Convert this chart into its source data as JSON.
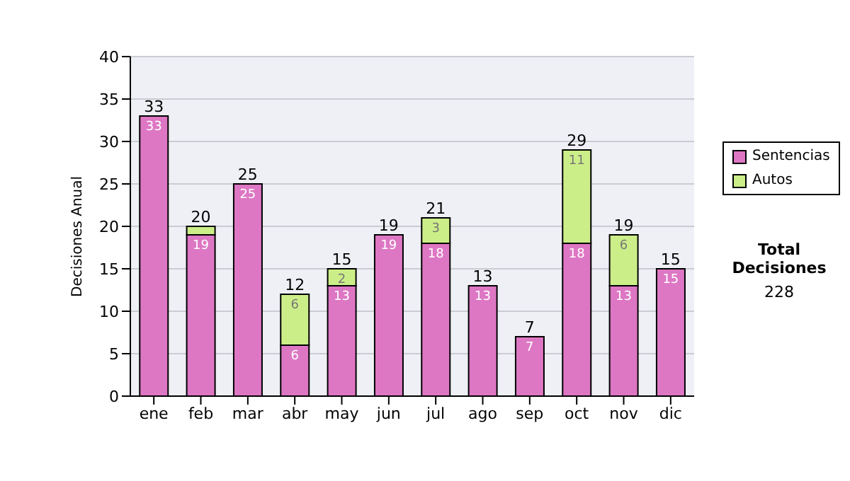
{
  "chart_data": {
    "type": "bar",
    "ylabel": "Decisiones Anual",
    "categories": [
      "ene",
      "feb",
      "mar",
      "abr",
      "may",
      "jun",
      "jul",
      "ago",
      "sep",
      "oct",
      "nov",
      "dic"
    ],
    "series": [
      {
        "name": "Sentencias",
        "color": "#dd77c4",
        "values": [
          33,
          19,
          25,
          6,
          13,
          19,
          18,
          13,
          7,
          18,
          13,
          15
        ],
        "value_labels": [
          "33",
          "19",
          "25",
          "6",
          "13",
          "19",
          "18",
          "13",
          "7",
          "18",
          "13",
          "15"
        ]
      },
      {
        "name": "Autos",
        "color": "#ccee88",
        "values": [
          0,
          1,
          0,
          6,
          2,
          0,
          3,
          0,
          0,
          11,
          6,
          0
        ],
        "value_labels": [
          null,
          null,
          null,
          "6",
          "2",
          null,
          "3",
          null,
          null,
          "11",
          "6",
          null
        ]
      }
    ],
    "stacked": true,
    "totals": [
      "33",
      "20",
      "25",
      "12",
      "15",
      "19",
      "21",
      "13",
      "7",
      "29",
      "19",
      "15"
    ],
    "ylim": [
      0,
      40
    ],
    "yticks": [
      0,
      5,
      10,
      15,
      20,
      25,
      30,
      35,
      40
    ],
    "grid": "y",
    "legend": "right",
    "annotations": [
      "Total Decisiones",
      "228"
    ]
  }
}
